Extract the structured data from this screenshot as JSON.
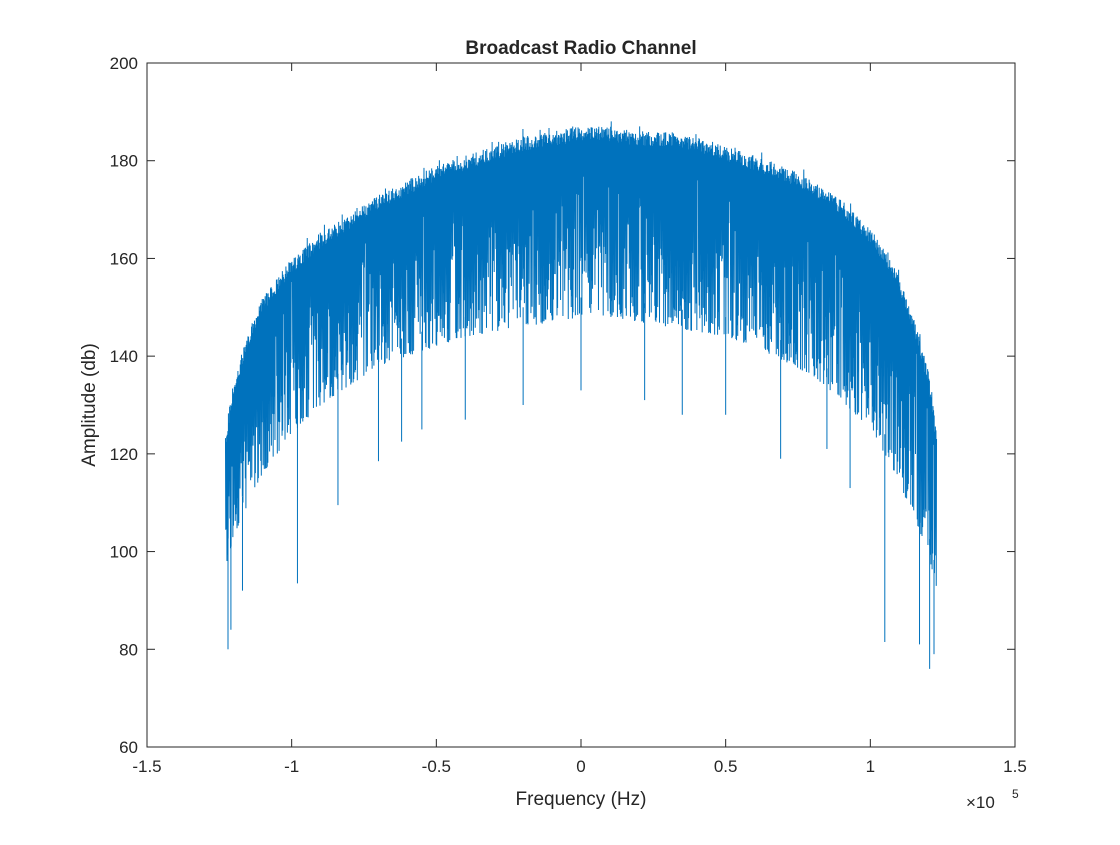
{
  "chart_data": {
    "type": "line",
    "title": "Broadcast Radio Channel",
    "xlabel": "Frequency (Hz)",
    "ylabel": "Amplitude (db)",
    "x_exponent_base": "×10",
    "x_exponent_power": "5",
    "xlim": [
      -1.5,
      1.5
    ],
    "ylim": [
      60,
      200
    ],
    "x_unit_scale": 100000,
    "x_ticks": [
      -1.5,
      -1,
      -0.5,
      0,
      0.5,
      1,
      1.5
    ],
    "x_tick_labels": [
      "-1.5",
      "-1",
      "-0.5",
      "0",
      "0.5",
      "1",
      "1.5"
    ],
    "y_ticks": [
      60,
      80,
      100,
      120,
      140,
      160,
      180,
      200
    ],
    "y_tick_labels": [
      "60",
      "80",
      "100",
      "120",
      "140",
      "160",
      "180",
      "200"
    ],
    "grid": false,
    "series_color": "#0072BD",
    "series": [
      {
        "x_range": [
          -122880,
          122880
        ],
        "upper_envelope": {
          "x": [
            -1.228,
            -1.2,
            -1.15,
            -1.1,
            -1.0,
            -0.9,
            -0.8,
            -0.7,
            -0.6,
            -0.5,
            -0.4,
            -0.3,
            -0.2,
            -0.1,
            0,
            0.1,
            0.2,
            0.3,
            0.4,
            0.5,
            0.6,
            0.7,
            0.8,
            0.9,
            1.0,
            1.05,
            1.1,
            1.15,
            1.2,
            1.228
          ],
          "y": [
            125,
            135,
            145,
            152,
            160,
            165,
            169,
            173,
            176,
            179,
            181,
            183,
            185,
            186,
            187,
            187,
            186,
            186,
            185,
            183,
            181,
            179,
            176,
            172,
            166,
            162,
            156,
            148,
            137,
            125
          ]
        },
        "lower_dense": {
          "x": [
            -1.228,
            -1.2,
            -1.15,
            -1.1,
            -1.0,
            -0.9,
            -0.8,
            -0.7,
            -0.6,
            -0.5,
            -0.4,
            -0.3,
            -0.2,
            -0.1,
            0,
            0.1,
            0.2,
            0.3,
            0.4,
            0.5,
            0.6,
            0.7,
            0.8,
            0.9,
            1.0,
            1.05,
            1.1,
            1.15,
            1.2,
            1.228
          ],
          "y": [
            97,
            103,
            110,
            116,
            124,
            130,
            134,
            138,
            140,
            142,
            144,
            145,
            146,
            147,
            148,
            148,
            147,
            146,
            145,
            144,
            142,
            139,
            136,
            131,
            125,
            120,
            114,
            107,
            100,
            92
          ]
        },
        "deep_dips": [
          {
            "x": -1.22,
            "y": 80
          },
          {
            "x": -1.21,
            "y": 84
          },
          {
            "x": -1.17,
            "y": 92
          },
          {
            "x": -0.98,
            "y": 93.5
          },
          {
            "x": -0.84,
            "y": 109.5
          },
          {
            "x": -0.7,
            "y": 118.5
          },
          {
            "x": -0.62,
            "y": 122.5
          },
          {
            "x": -0.55,
            "y": 125
          },
          {
            "x": -0.4,
            "y": 127
          },
          {
            "x": -0.2,
            "y": 130
          },
          {
            "x": 0.0,
            "y": 133
          },
          {
            "x": 0.22,
            "y": 131
          },
          {
            "x": 0.35,
            "y": 128
          },
          {
            "x": 0.5,
            "y": 128
          },
          {
            "x": 0.69,
            "y": 119
          },
          {
            "x": 0.85,
            "y": 121
          },
          {
            "x": 0.93,
            "y": 113
          },
          {
            "x": 1.05,
            "y": 81.5
          },
          {
            "x": 1.17,
            "y": 81
          },
          {
            "x": 1.205,
            "y": 76
          },
          {
            "x": 1.22,
            "y": 79
          }
        ]
      }
    ]
  }
}
